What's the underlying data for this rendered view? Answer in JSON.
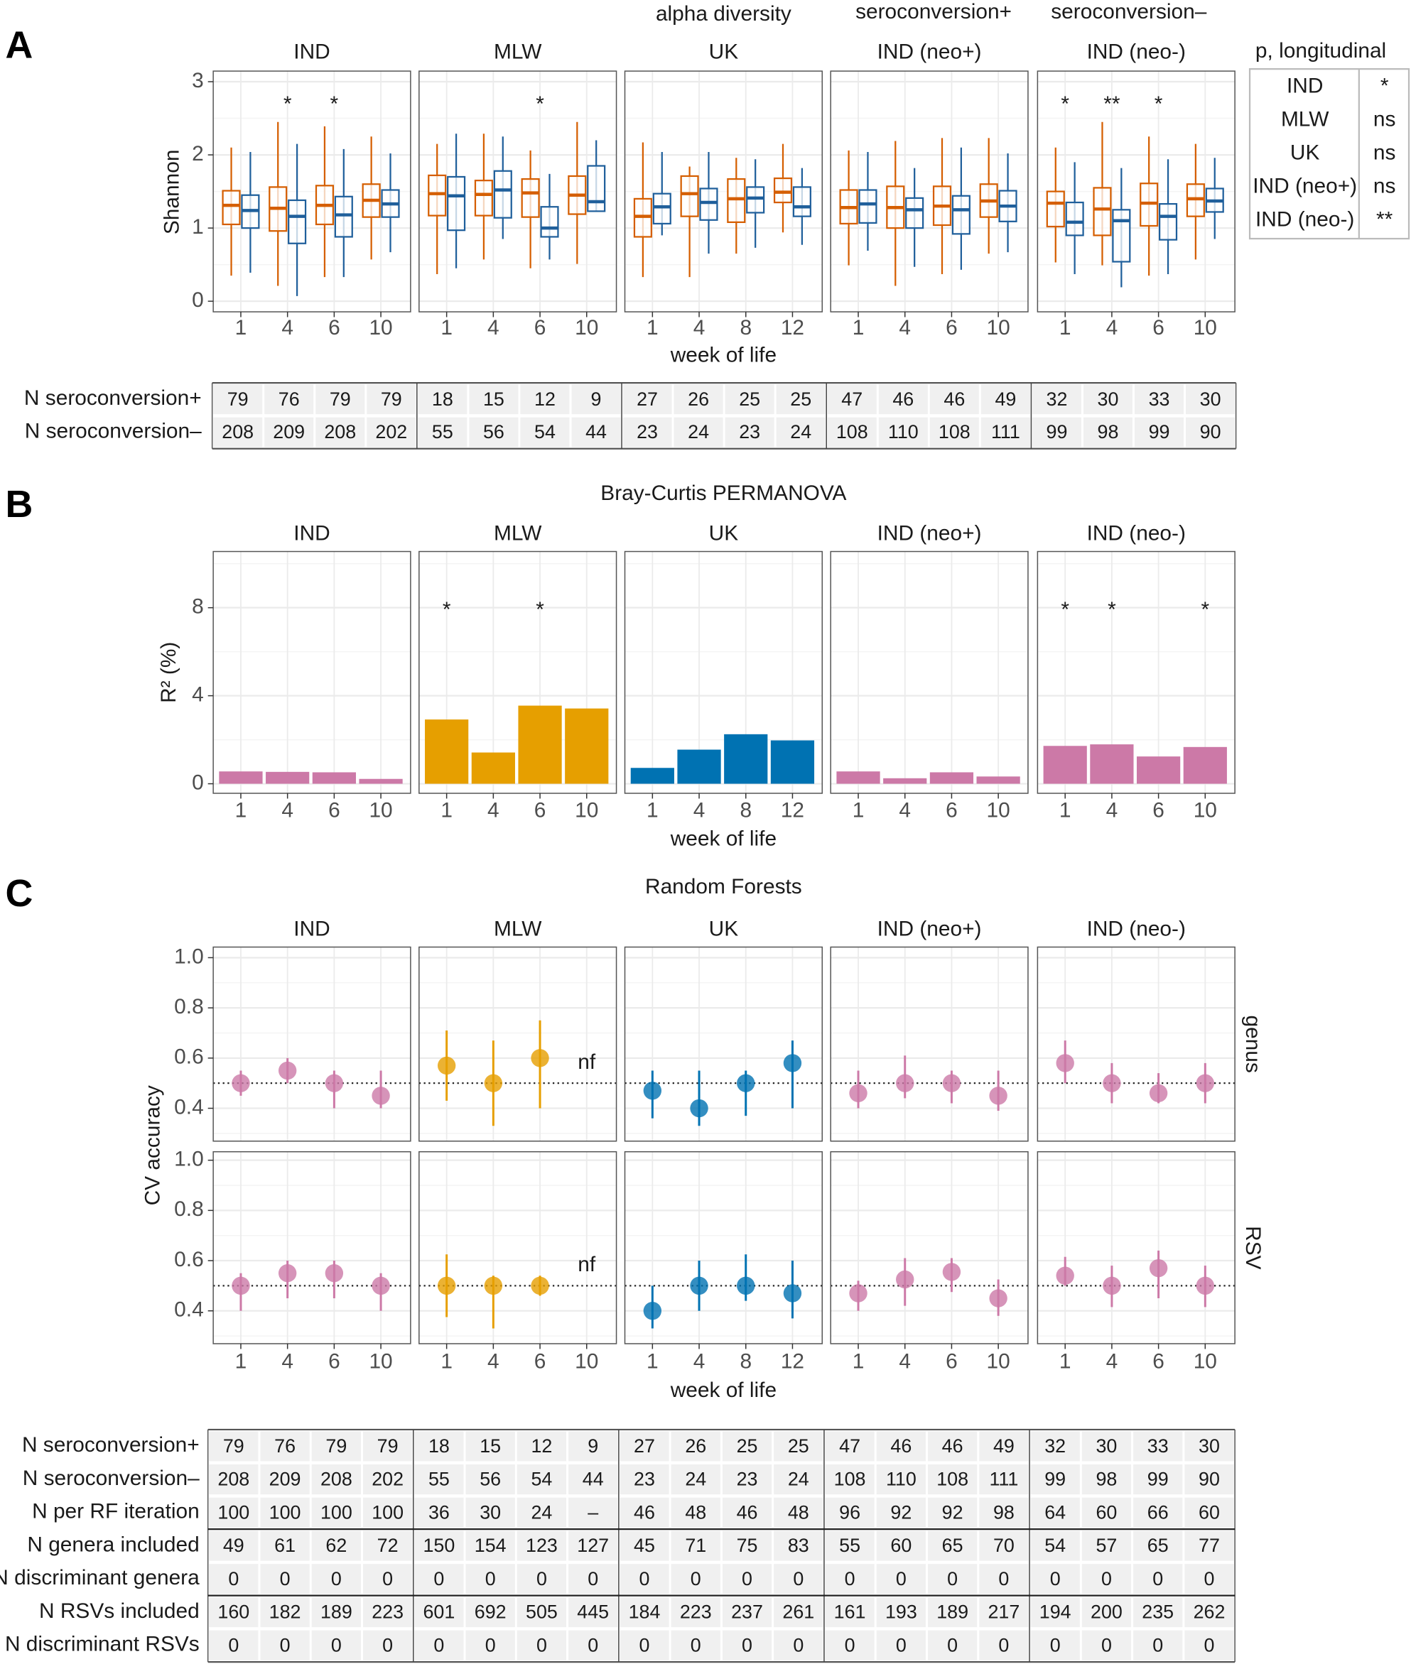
{
  "colors": {
    "plus": "#1f5f9b",
    "minus": "#d55e00",
    "IND": "#cc79a7",
    "MLW": "#e69f00",
    "UK": "#0072b2",
    "grey": "#8c8c8c"
  },
  "facets": [
    "IND",
    "MLW",
    "UK",
    "IND (neo+)",
    "IND (neo-)"
  ],
  "facet_color_keys": [
    "IND",
    "MLW",
    "UK",
    "IND",
    "IND"
  ],
  "weeks": [
    [
      "1",
      "4",
      "6",
      "10"
    ],
    [
      "1",
      "4",
      "6",
      "10"
    ],
    [
      "1",
      "4",
      "8",
      "12"
    ],
    [
      "1",
      "4",
      "6",
      "10"
    ],
    [
      "1",
      "4",
      "6",
      "10"
    ]
  ],
  "xlabel": "week of life",
  "chart_data": [
    {
      "type": "boxplot",
      "letter": "A",
      "header": {
        "title": "alpha diversity",
        "legend_plus": "seroconversion+",
        "legend_minus": "seroconversion–"
      },
      "ylabel": "Shannon",
      "ylim": [
        0,
        3
      ],
      "yticks": [
        "0",
        "1",
        "2",
        "3"
      ],
      "grid": true,
      "box_stats_order": [
        "whisker_low",
        "q1",
        "median",
        "q3",
        "whisker_high"
      ],
      "series": [
        {
          "name": "seroconversion+",
          "facets": [
            [
              [
                0.39,
                1.0,
                1.24,
                1.45,
                2.04
              ],
              [
                0.07,
                0.79,
                1.16,
                1.38,
                2.15
              ],
              [
                0.33,
                0.88,
                1.18,
                1.43,
                2.08
              ],
              [
                0.67,
                1.15,
                1.33,
                1.52,
                2.02
              ]
            ],
            [
              [
                0.45,
                0.97,
                1.44,
                1.7,
                2.29
              ],
              [
                0.85,
                1.14,
                1.52,
                1.78,
                2.25
              ],
              [
                0.57,
                0.88,
                1.0,
                1.29,
                1.74
              ],
              [
                1.23,
                1.23,
                1.36,
                1.85,
                2.2
              ]
            ],
            [
              [
                0.9,
                1.06,
                1.29,
                1.47,
                2.04
              ],
              [
                0.65,
                1.11,
                1.35,
                1.54,
                2.04
              ],
              [
                0.73,
                1.21,
                1.41,
                1.56,
                1.94
              ],
              [
                0.77,
                1.16,
                1.29,
                1.56,
                1.82
              ]
            ],
            [
              [
                0.69,
                1.07,
                1.33,
                1.52,
                2.04
              ],
              [
                0.47,
                1.0,
                1.25,
                1.41,
                1.82
              ],
              [
                0.43,
                0.92,
                1.25,
                1.44,
                2.1
              ],
              [
                0.67,
                1.09,
                1.3,
                1.51,
                2.02
              ]
            ],
            [
              [
                0.37,
                0.9,
                1.08,
                1.35,
                1.9
              ],
              [
                0.19,
                0.54,
                1.1,
                1.25,
                1.82
              ],
              [
                0.37,
                0.84,
                1.16,
                1.33,
                1.94
              ],
              [
                0.85,
                1.22,
                1.37,
                1.54,
                1.96
              ]
            ]
          ]
        },
        {
          "name": "seroconversion–",
          "facets": [
            [
              [
                0.35,
                1.05,
                1.31,
                1.51,
                2.1
              ],
              [
                0.21,
                0.96,
                1.27,
                1.56,
                2.45
              ],
              [
                0.33,
                1.05,
                1.31,
                1.58,
                2.39
              ],
              [
                0.57,
                1.15,
                1.38,
                1.6,
                2.25
              ]
            ],
            [
              [
                0.37,
                1.17,
                1.47,
                1.72,
                2.15
              ],
              [
                0.57,
                1.17,
                1.46,
                1.65,
                2.29
              ],
              [
                0.45,
                1.15,
                1.48,
                1.67,
                2.06
              ],
              [
                0.51,
                1.19,
                1.45,
                1.71,
                2.45
              ]
            ],
            [
              [
                0.33,
                0.88,
                1.16,
                1.4,
                2.17
              ],
              [
                0.33,
                1.16,
                1.47,
                1.71,
                1.84
              ],
              [
                0.65,
                1.08,
                1.4,
                1.67,
                1.96
              ],
              [
                0.94,
                1.35,
                1.49,
                1.68,
                2.15
              ]
            ],
            [
              [
                0.49,
                1.06,
                1.28,
                1.52,
                2.06
              ],
              [
                0.21,
                1.0,
                1.28,
                1.57,
                2.19
              ],
              [
                0.37,
                1.04,
                1.3,
                1.57,
                2.23
              ],
              [
                0.65,
                1.15,
                1.37,
                1.6,
                2.23
              ]
            ],
            [
              [
                0.53,
                1.02,
                1.34,
                1.5,
                2.1
              ],
              [
                0.49,
                0.9,
                1.26,
                1.55,
                2.45
              ],
              [
                0.35,
                1.03,
                1.34,
                1.61,
                2.25
              ],
              [
                0.57,
                1.16,
                1.4,
                1.6,
                2.15
              ]
            ]
          ]
        }
      ],
      "significance": [
        [
          "",
          "*",
          "*",
          ""
        ],
        [
          "",
          "",
          "*",
          ""
        ],
        [
          "",
          "",
          "",
          ""
        ],
        [
          "",
          "",
          "",
          ""
        ],
        [
          "*",
          "**",
          "*",
          ""
        ]
      ],
      "p_longitudinal": {
        "title": "p, longitudinal",
        "rows": [
          {
            "group": "IND",
            "p": "*",
            "color_key": "IND"
          },
          {
            "group": "MLW",
            "p": "ns",
            "color_key": "MLW"
          },
          {
            "group": "UK",
            "p": "ns",
            "color_key": "UK"
          },
          {
            "group": "IND (neo+)",
            "p": "ns",
            "color_key": "IND"
          },
          {
            "group": "IND (neo-)",
            "p": "**",
            "color_key": "IND"
          }
        ]
      }
    },
    {
      "type": "bar",
      "letter": "B",
      "title": "Bray-Curtis PERMANOVA",
      "ylabel": "R² (%)",
      "ylim": [
        0,
        10
      ],
      "yticks": [
        "0",
        "4",
        "8"
      ],
      "grid": true,
      "values": [
        [
          0.56,
          0.54,
          0.52,
          0.22
        ],
        [
          2.92,
          1.42,
          3.55,
          3.42
        ],
        [
          0.72,
          1.55,
          2.25,
          1.97
        ],
        [
          0.56,
          0.25,
          0.52,
          0.33
        ],
        [
          1.72,
          1.79,
          1.24,
          1.67
        ]
      ],
      "significance": [
        [
          "",
          "",
          "",
          ""
        ],
        [
          "*",
          "",
          "*",
          ""
        ],
        [
          "",
          "",
          "",
          ""
        ],
        [
          "",
          "",
          "",
          ""
        ],
        [
          "*",
          "*",
          "",
          "*"
        ]
      ]
    },
    {
      "type": "scatter",
      "letter": "C",
      "title": "Random Forests",
      "ylabel": "CV accuracy",
      "ylim": [
        0.27,
        1.03
      ],
      "yticks": [
        "0.4",
        "0.6",
        "0.8",
        "1.0"
      ],
      "reference_line": 0.5,
      "grid": true,
      "point_order": [
        "estimate",
        "ci_low",
        "ci_high"
      ],
      "rows": [
        {
          "name": "genus",
          "facets": [
            [
              [
                0.5,
                0.45,
                0.55
              ],
              [
                0.55,
                0.5,
                0.6
              ],
              [
                0.5,
                0.4,
                0.55
              ],
              [
                0.45,
                0.4,
                0.55
              ]
            ],
            [
              [
                0.57,
                0.43,
                0.71
              ],
              [
                0.5,
                0.33,
                0.67
              ],
              [
                0.6,
                0.4,
                0.75
              ],
              null
            ],
            [
              [
                0.47,
                0.36,
                0.55
              ],
              [
                0.4,
                0.33,
                0.55
              ],
              [
                0.5,
                0.37,
                0.55
              ],
              [
                0.58,
                0.4,
                0.67
              ]
            ],
            [
              [
                0.46,
                0.4,
                0.55
              ],
              [
                0.5,
                0.44,
                0.61
              ],
              [
                0.5,
                0.42,
                0.55
              ],
              [
                0.45,
                0.39,
                0.55
              ]
            ],
            [
              [
                0.58,
                0.5,
                0.67
              ],
              [
                0.5,
                0.42,
                0.58
              ],
              [
                0.46,
                0.42,
                0.54
              ],
              [
                0.5,
                0.42,
                0.58
              ]
            ]
          ]
        },
        {
          "name": "RSV",
          "facets": [
            [
              [
                0.5,
                0.4,
                0.55
              ],
              [
                0.55,
                0.45,
                0.6
              ],
              [
                0.55,
                0.45,
                0.6
              ],
              [
                0.5,
                0.4,
                0.55
              ]
            ],
            [
              [
                0.5,
                0.375,
                0.625
              ],
              [
                0.5,
                0.33,
                0.54
              ],
              [
                0.5,
                0.46,
                0.54
              ],
              null
            ],
            [
              [
                0.4,
                0.33,
                0.5
              ],
              [
                0.5,
                0.4,
                0.6
              ],
              [
                0.5,
                0.44,
                0.625
              ],
              [
                0.47,
                0.37,
                0.6
              ]
            ],
            [
              [
                0.47,
                0.4,
                0.52
              ],
              [
                0.525,
                0.42,
                0.61
              ],
              [
                0.555,
                0.475,
                0.61
              ],
              [
                0.45,
                0.38,
                0.525
              ]
            ],
            [
              [
                0.54,
                0.5,
                0.615
              ],
              [
                0.5,
                0.415,
                0.58
              ],
              [
                0.57,
                0.45,
                0.64
              ],
              [
                0.5,
                0.415,
                0.58
              ]
            ]
          ]
        }
      ],
      "not_fitted_label": "nf"
    }
  ],
  "table_a": {
    "rows": [
      {
        "label": "N seroconversion+",
        "color_key": "plus",
        "values": [
          "79",
          "76",
          "79",
          "79",
          "18",
          "15",
          "12",
          "9",
          "27",
          "26",
          "25",
          "25",
          "47",
          "46",
          "46",
          "49",
          "32",
          "30",
          "33",
          "30"
        ]
      },
      {
        "label": "N seroconversion–",
        "color_key": "minus",
        "values": [
          "208",
          "209",
          "208",
          "202",
          "55",
          "56",
          "54",
          "44",
          "23",
          "24",
          "23",
          "24",
          "108",
          "110",
          "108",
          "111",
          "99",
          "98",
          "99",
          "90"
        ]
      }
    ]
  },
  "table_c": {
    "rows": [
      {
        "label": "N seroconversion+",
        "color_key": "plus",
        "values": [
          "79",
          "76",
          "79",
          "79",
          "18",
          "15",
          "12",
          "9",
          "27",
          "26",
          "25",
          "25",
          "47",
          "46",
          "46",
          "49",
          "32",
          "30",
          "33",
          "30"
        ]
      },
      {
        "label": "N seroconversion–",
        "color_key": "minus",
        "values": [
          "208",
          "209",
          "208",
          "202",
          "55",
          "56",
          "54",
          "44",
          "23",
          "24",
          "23",
          "24",
          "108",
          "110",
          "108",
          "111",
          "99",
          "98",
          "99",
          "90"
        ]
      },
      {
        "label": "N per RF iteration",
        "color_key": "",
        "values": [
          "100",
          "100",
          "100",
          "100",
          "36",
          "30",
          "24",
          "–",
          "46",
          "48",
          "46",
          "48",
          "96",
          "92",
          "92",
          "98",
          "64",
          "60",
          "66",
          "60"
        ]
      },
      {
        "label": "N genera included",
        "color_key": "",
        "values": [
          "49",
          "61",
          "62",
          "72",
          "150",
          "154",
          "123",
          "127",
          "45",
          "71",
          "75",
          "83",
          "55",
          "60",
          "65",
          "70",
          "54",
          "57",
          "65",
          "77"
        ]
      },
      {
        "label": "N discriminant genera",
        "color_key": "",
        "values": [
          "0",
          "0",
          "0",
          "0",
          "0",
          "0",
          "0",
          "0",
          "0",
          "0",
          "0",
          "0",
          "0",
          "0",
          "0",
          "0",
          "0",
          "0",
          "0",
          "0"
        ]
      },
      {
        "label": "N RSVs included",
        "color_key": "",
        "values": [
          "160",
          "182",
          "189",
          "223",
          "601",
          "692",
          "505",
          "445",
          "184",
          "223",
          "237",
          "261",
          "161",
          "193",
          "189",
          "217",
          "194",
          "200",
          "235",
          "262"
        ]
      },
      {
        "label": "N discriminant RSVs",
        "color_key": "",
        "values": [
          "0",
          "0",
          "0",
          "0",
          "0",
          "0",
          "0",
          "0",
          "0",
          "0",
          "0",
          "0",
          "0",
          "0",
          "0",
          "0",
          "0",
          "0",
          "0",
          "0"
        ]
      }
    ]
  }
}
